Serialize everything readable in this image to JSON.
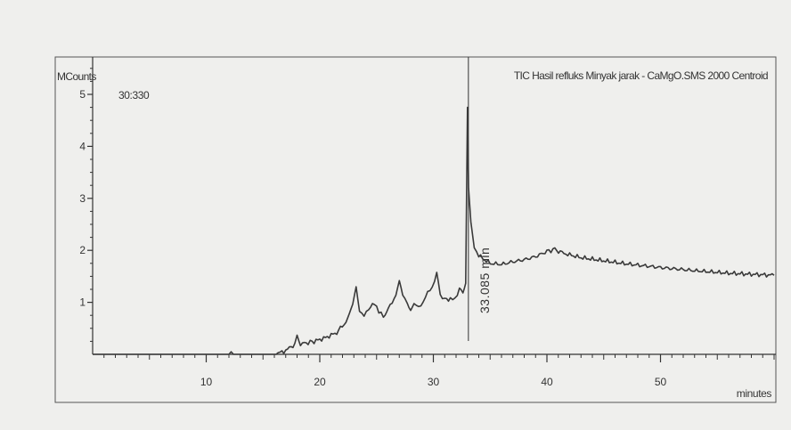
{
  "chart_data": {
    "type": "line",
    "title": "TIC Hasil refluks Minyak jarak - CaMgO.SMS 2000 Centroid",
    "scan_label": "30:330",
    "ylabel": "MCounts",
    "xlabel": "minutes",
    "xlim": [
      0,
      60
    ],
    "ylim": [
      0,
      5.6
    ],
    "x_ticks": [
      10,
      20,
      30,
      40,
      50
    ],
    "y_ticks": [
      1,
      2,
      3,
      4,
      5
    ],
    "peak_annotation": {
      "x": 33.085,
      "text": "33.085 min"
    },
    "series": [
      {
        "x": [
          0,
          12,
          12.2,
          12.4,
          12.8,
          16,
          17,
          17.8,
          18.0,
          18.3,
          18.8,
          19.5,
          20.5,
          21.5,
          22.3,
          22.9,
          23.2,
          23.5,
          23.9,
          24.3,
          24.8,
          25.2,
          25.6,
          26.2,
          26.7,
          27.0,
          27.3,
          27.7,
          28.0,
          28.3,
          28.7,
          29.1,
          29.5,
          29.9,
          30.3,
          30.6,
          31.0,
          31.5,
          31.9,
          32.3,
          32.6,
          32.85,
          33.0,
          33.1,
          33.3,
          33.6,
          34.0,
          34.5,
          35,
          36,
          37,
          38,
          39,
          40,
          40.7,
          41.5,
          43,
          45,
          47,
          50,
          53,
          56,
          60
        ],
        "y": [
          0,
          0,
          0.05,
          0,
          0,
          0,
          0.07,
          0.2,
          0.35,
          0.2,
          0.22,
          0.25,
          0.32,
          0.42,
          0.62,
          0.95,
          1.3,
          0.85,
          0.75,
          0.85,
          1.0,
          0.8,
          0.75,
          0.92,
          1.15,
          1.4,
          1.12,
          1.0,
          0.88,
          0.95,
          0.92,
          1.0,
          1.18,
          1.3,
          1.55,
          1.12,
          1.08,
          1.05,
          1.08,
          1.25,
          1.15,
          1.35,
          4.75,
          3.2,
          2.55,
          2.05,
          1.9,
          1.82,
          1.75,
          1.73,
          1.78,
          1.82,
          1.88,
          1.98,
          2.02,
          1.94,
          1.86,
          1.8,
          1.74,
          1.67,
          1.61,
          1.56,
          1.52
        ]
      }
    ]
  }
}
